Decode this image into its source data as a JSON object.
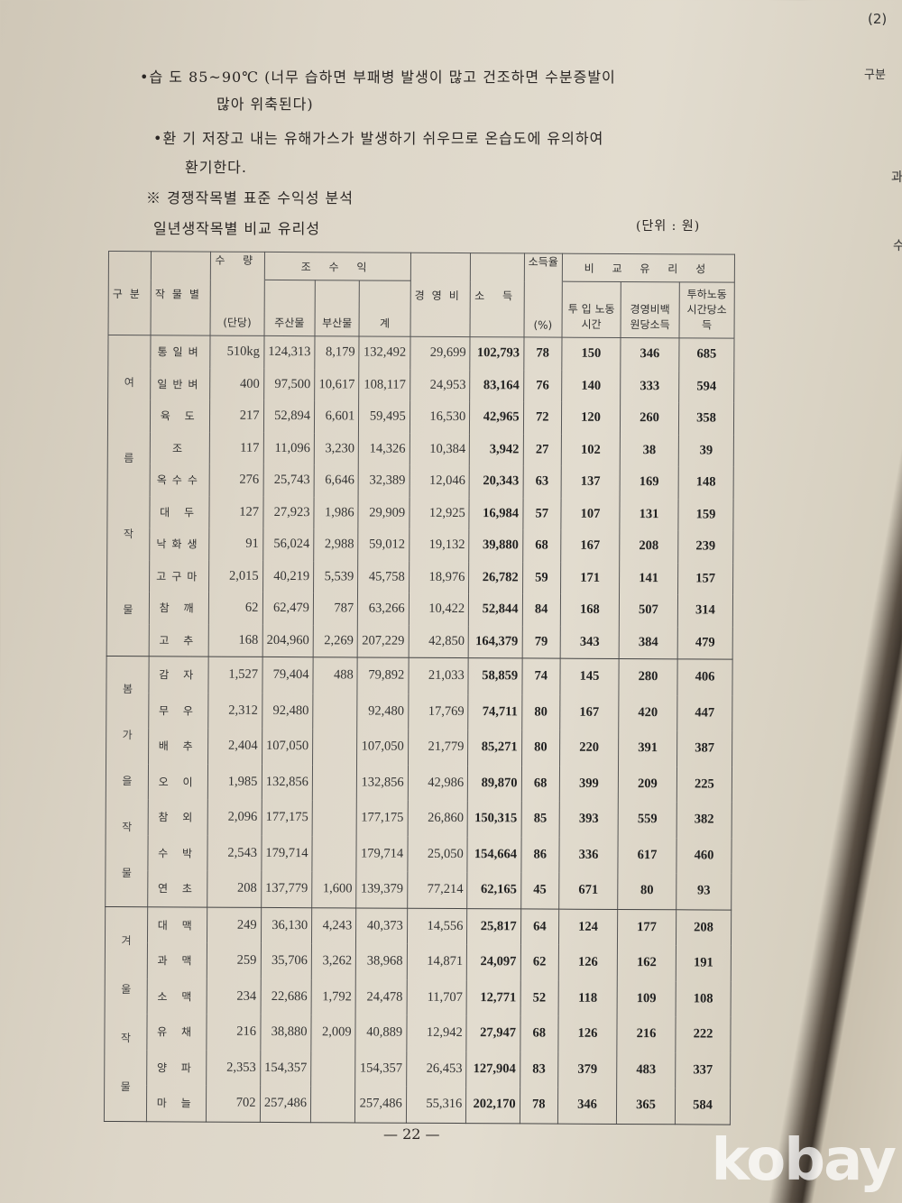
{
  "text": {
    "humidity": "•습 도 85~90℃ (너무 습하면 부패병 발생이 많고 건조하면 수분증발이",
    "humidity_cont": "많아 위축된다)",
    "ventilation": "•환 기 저장고 내는 유해가스가 발생하기 쉬우므로 온습도에 유의하여",
    "ventilation_cont": "환기한다.",
    "section_title": "※ 경쟁작목별 표준 수익성 분석",
    "table_title": "일년생작목별 비교 유리성",
    "unit": "(단위 : 원)"
  },
  "table": {
    "headers": {
      "group": "구분",
      "crop": "작물별",
      "yield_top": "수 량",
      "yield_bottom": "(단당)",
      "gross": "조 수 익",
      "main": "주산물",
      "by": "부산물",
      "total": "계",
      "cost": "경영비",
      "income": "소 득",
      "rate_top": "소득율",
      "rate_bottom": "(%)",
      "compare": "비 교 유 리 성",
      "labor": "투 입 노동시간",
      "per_cost": "경영비백 원당소득",
      "per_hour": "투하노동 시간당소득"
    },
    "groups": [
      {
        "label": "여름작물",
        "rows": [
          [
            "통일벼",
            "510kg",
            "124,313",
            "8,179",
            "132,492",
            "29,699",
            "102,793",
            "78",
            "150",
            "346",
            "685"
          ],
          [
            "일반벼",
            "400",
            "97,500",
            "10,617",
            "108,117",
            "24,953",
            "83,164",
            "76",
            "140",
            "333",
            "594"
          ],
          [
            "육 도",
            "217",
            "52,894",
            "6,601",
            "59,495",
            "16,530",
            "42,965",
            "72",
            "120",
            "260",
            "358"
          ],
          [
            "조",
            "117",
            "11,096",
            "3,230",
            "14,326",
            "10,384",
            "3,942",
            "27",
            "102",
            "38",
            "39"
          ],
          [
            "옥수수",
            "276",
            "25,743",
            "6,646",
            "32,389",
            "12,046",
            "20,343",
            "63",
            "137",
            "169",
            "148"
          ],
          [
            "대 두",
            "127",
            "27,923",
            "1,986",
            "29,909",
            "12,925",
            "16,984",
            "57",
            "107",
            "131",
            "159"
          ],
          [
            "낙화생",
            "91",
            "56,024",
            "2,988",
            "59,012",
            "19,132",
            "39,880",
            "68",
            "167",
            "208",
            "239"
          ],
          [
            "고구마",
            "2,015",
            "40,219",
            "5,539",
            "45,758",
            "18,976",
            "26,782",
            "59",
            "171",
            "141",
            "157"
          ],
          [
            "참 깨",
            "62",
            "62,479",
            "787",
            "63,266",
            "10,422",
            "52,844",
            "84",
            "168",
            "507",
            "314"
          ],
          [
            "고 추",
            "168",
            "204,960",
            "2,269",
            "207,229",
            "42,850",
            "164,379",
            "79",
            "343",
            "384",
            "479"
          ]
        ]
      },
      {
        "label": "봄가을작물",
        "rows": [
          [
            "감 자",
            "1,527",
            "79,404",
            "488",
            "79,892",
            "21,033",
            "58,859",
            "74",
            "145",
            "280",
            "406"
          ],
          [
            "무 우",
            "2,312",
            "92,480",
            "",
            "92,480",
            "17,769",
            "74,711",
            "80",
            "167",
            "420",
            "447"
          ],
          [
            "배 추",
            "2,404",
            "107,050",
            "",
            "107,050",
            "21,779",
            "85,271",
            "80",
            "220",
            "391",
            "387"
          ],
          [
            "오 이",
            "1,985",
            "132,856",
            "",
            "132,856",
            "42,986",
            "89,870",
            "68",
            "399",
            "209",
            "225"
          ],
          [
            "참 외",
            "2,096",
            "177,175",
            "",
            "177,175",
            "26,860",
            "150,315",
            "85",
            "393",
            "559",
            "382"
          ],
          [
            "수 박",
            "2,543",
            "179,714",
            "",
            "179,714",
            "25,050",
            "154,664",
            "86",
            "336",
            "617",
            "460"
          ],
          [
            "연 초",
            "208",
            "137,779",
            "1,600",
            "139,379",
            "77,214",
            "62,165",
            "45",
            "671",
            "80",
            "93"
          ]
        ]
      },
      {
        "label": "겨울작물",
        "rows": [
          [
            "대 맥",
            "249",
            "36,130",
            "4,243",
            "40,373",
            "14,556",
            "25,817",
            "64",
            "124",
            "177",
            "208"
          ],
          [
            "과 맥",
            "259",
            "35,706",
            "3,262",
            "38,968",
            "14,871",
            "24,097",
            "62",
            "126",
            "162",
            "191"
          ],
          [
            "소 맥",
            "234",
            "22,686",
            "1,792",
            "24,478",
            "11,707",
            "12,771",
            "52",
            "118",
            "109",
            "108"
          ],
          [
            "유 채",
            "216",
            "38,880",
            "2,009",
            "40,889",
            "12,942",
            "27,947",
            "68",
            "126",
            "216",
            "222"
          ],
          [
            "양 파",
            "2,353",
            "154,357",
            "",
            "154,357",
            "26,453",
            "127,904",
            "83",
            "379",
            "483",
            "337"
          ],
          [
            "마 늘",
            "702",
            "257,486",
            "",
            "257,486",
            "55,316",
            "202,170",
            "78",
            "346",
            "365",
            "584"
          ]
        ]
      }
    ]
  },
  "page_number": "— 22 —",
  "next_page": {
    "number": "(2)",
    "header": "구분",
    "chars": [
      "과",
      "수"
    ]
  },
  "watermark": "kobay"
}
